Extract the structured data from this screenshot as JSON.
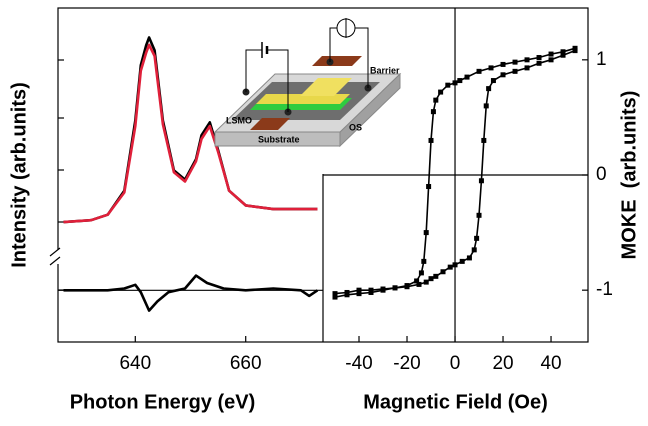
{
  "chart_data": [
    {
      "type": "line",
      "xlabel": "Photon Energy (eV)",
      "ylabel": "Intensity (arb.units)",
      "xlim": [
        626,
        674
      ],
      "ylim": [
        -0.65,
        1.16
      ],
      "xticks": [
        640,
        660
      ],
      "hline": -0.37,
      "series": [
        {
          "color": "#000000",
          "x": [
            627,
            632,
            635,
            638,
            640,
            641,
            642,
            642.5,
            643.5,
            645,
            647,
            649,
            651,
            652,
            653.5,
            655,
            657,
            660,
            665,
            670,
            673
          ],
          "values": [
            0.0,
            0.01,
            0.04,
            0.17,
            0.55,
            0.85,
            0.96,
            1.0,
            0.93,
            0.55,
            0.28,
            0.23,
            0.34,
            0.47,
            0.54,
            0.39,
            0.17,
            0.09,
            0.07,
            0.07,
            0.07
          ]
        },
        {
          "color": "#e0203a",
          "x": [
            627,
            632,
            635,
            638,
            640,
            641,
            642,
            642.5,
            643.5,
            645,
            647,
            649,
            651,
            652,
            653.5,
            655,
            657,
            660,
            665,
            670,
            673
          ],
          "values": [
            0.0,
            0.01,
            0.04,
            0.16,
            0.52,
            0.82,
            0.92,
            0.96,
            0.9,
            0.53,
            0.27,
            0.22,
            0.33,
            0.45,
            0.52,
            0.38,
            0.17,
            0.09,
            0.07,
            0.07,
            0.07
          ]
        },
        {
          "color": "#000000",
          "x": [
            627,
            635,
            638,
            640,
            641,
            642.5,
            644,
            646,
            649,
            651,
            653,
            656,
            660,
            665,
            670,
            671.5,
            673
          ],
          "values": [
            -0.37,
            -0.37,
            -0.36,
            -0.34,
            -0.38,
            -0.48,
            -0.43,
            -0.38,
            -0.36,
            -0.29,
            -0.33,
            -0.36,
            -0.37,
            -0.36,
            -0.37,
            -0.4,
            -0.37
          ]
        }
      ]
    },
    {
      "type": "line",
      "marker": "square",
      "xlabel": "Magnetic Field (Oe)",
      "ylabel": "MOKE  (arb.units)",
      "xlim": [
        -55,
        55.4
      ],
      "ylim": [
        -1.45,
        1.45
      ],
      "xticks": [
        -40,
        -20,
        0,
        20,
        40
      ],
      "yticks": [
        -1,
        0,
        1
      ],
      "hline": 0,
      "vline": 0,
      "series": [
        {
          "color": "#000000",
          "x": [
            -50,
            -45,
            -40,
            -35,
            -30,
            -25,
            -20,
            -15,
            -12,
            -10,
            -8,
            -5,
            -2,
            0,
            3,
            6,
            8,
            9,
            10,
            11,
            12,
            13,
            14,
            16,
            20,
            25,
            30,
            35,
            40,
            45,
            50
          ],
          "values": [
            -1.03,
            -1.02,
            -1.0,
            -1.0,
            -0.99,
            -0.98,
            -0.97,
            -0.95,
            -0.93,
            -0.9,
            -0.88,
            -0.84,
            -0.8,
            -0.78,
            -0.75,
            -0.72,
            -0.65,
            -0.55,
            -0.35,
            -0.05,
            0.3,
            0.6,
            0.75,
            0.82,
            0.87,
            0.9,
            0.93,
            0.97,
            1.0,
            1.04,
            1.08
          ]
        },
        {
          "color": "#000000",
          "x": [
            50,
            45,
            40,
            35,
            30,
            25,
            20,
            15,
            10,
            5,
            2,
            0,
            -3,
            -6,
            -8,
            -9,
            -10,
            -11,
            -12,
            -13,
            -14,
            -16,
            -20,
            -25,
            -30,
            -35,
            -40,
            -45,
            -50
          ],
          "values": [
            1.1,
            1.07,
            1.05,
            1.02,
            1.0,
            0.98,
            0.96,
            0.93,
            0.9,
            0.85,
            0.82,
            0.8,
            0.78,
            0.72,
            0.65,
            0.55,
            0.3,
            -0.1,
            -0.5,
            -0.75,
            -0.85,
            -0.92,
            -0.96,
            -0.98,
            -1.0,
            -1.02,
            -1.03,
            -1.04,
            -1.06
          ]
        }
      ]
    }
  ],
  "inset": {
    "labels": [
      "Barrier",
      "LSMO",
      "OS",
      "Substrate"
    ]
  }
}
